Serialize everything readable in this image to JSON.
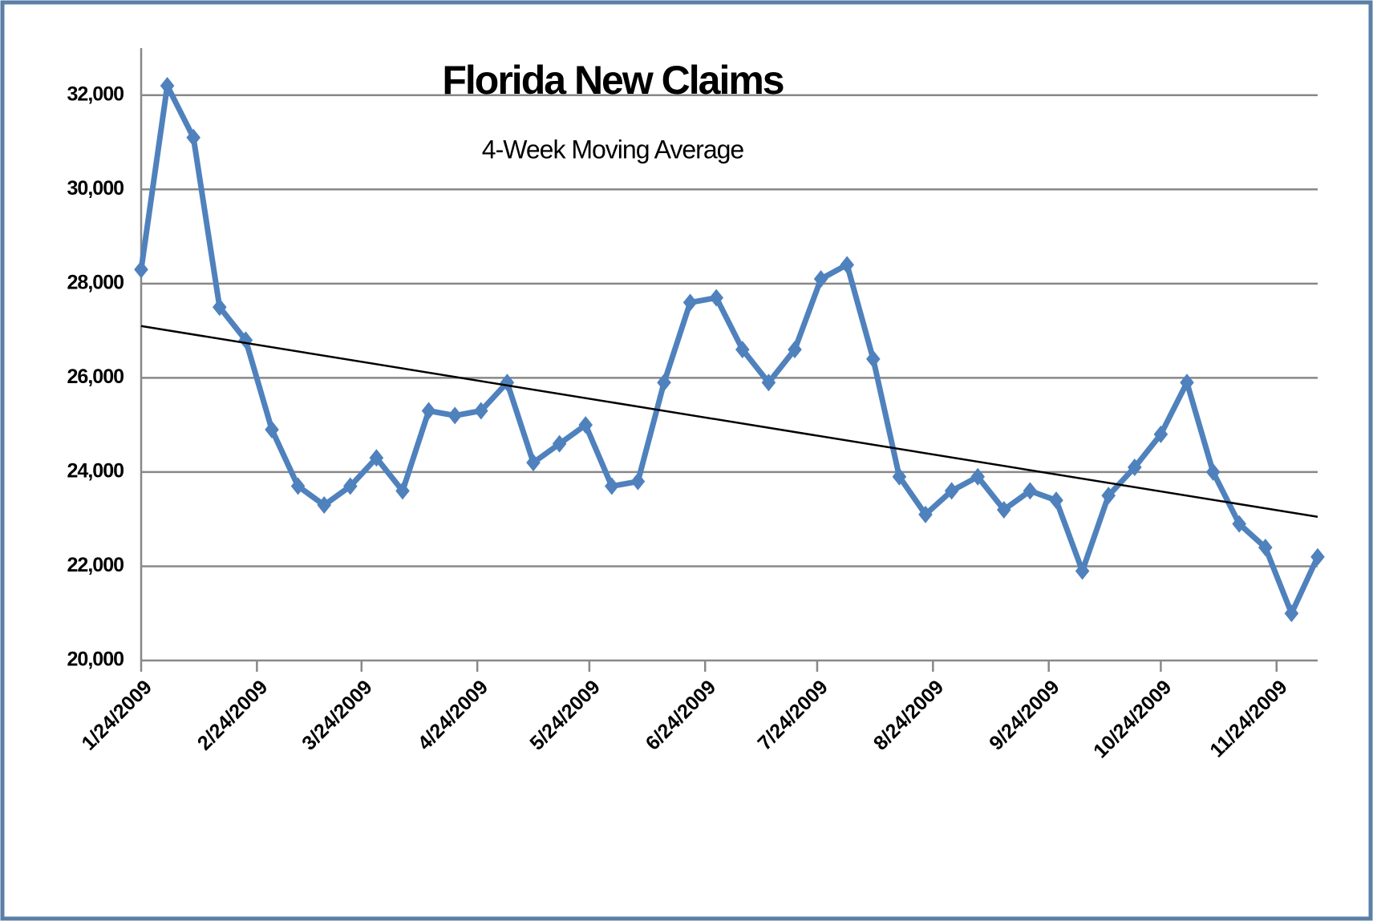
{
  "chart_data": {
    "type": "line",
    "title": "Florida New Claims",
    "subtitle": "4-Week Moving Average",
    "x": [
      "1/24/2009",
      "1/31/2009",
      "2/7/2009",
      "2/14/2009",
      "2/21/2009",
      "2/28/2009",
      "3/7/2009",
      "3/14/2009",
      "3/21/2009",
      "3/28/2009",
      "4/4/2009",
      "4/11/2009",
      "4/18/2009",
      "4/25/2009",
      "5/2/2009",
      "5/9/2009",
      "5/16/2009",
      "5/23/2009",
      "5/30/2009",
      "6/6/2009",
      "6/13/2009",
      "6/20/2009",
      "6/27/2009",
      "7/4/2009",
      "7/11/2009",
      "7/18/2009",
      "7/25/2009",
      "8/1/2009",
      "8/8/2009",
      "8/15/2009",
      "8/22/2009",
      "8/29/2009",
      "9/5/2009",
      "9/12/2009",
      "9/19/2009",
      "9/26/2009",
      "10/3/2009",
      "10/10/2009",
      "10/17/2009",
      "10/24/2009",
      "10/31/2009",
      "11/7/2009",
      "11/14/2009",
      "11/21/2009",
      "11/28/2009",
      "12/5/2009"
    ],
    "series": [
      {
        "color": "#4f81bd",
        "values": [
          28300,
          32200,
          31100,
          27500,
          26800,
          24900,
          23700,
          23300,
          23700,
          24300,
          23600,
          25300,
          25200,
          25300,
          25900,
          24200,
          24600,
          25000,
          23700,
          23800,
          25900,
          27600,
          27700,
          26600,
          25900,
          26600,
          28100,
          28400,
          26400,
          23900,
          23100,
          23600,
          23900,
          23200,
          23600,
          23400,
          21900,
          23500,
          24100,
          24800,
          25900,
          24000,
          22900,
          22400,
          21000,
          22200
        ]
      }
    ],
    "trend": {
      "color": "#000000",
      "values": [
        27100,
        23050
      ]
    },
    "xlim": [
      "1/24/2009",
      "12/5/2009"
    ],
    "xticks": [
      "1/24/2009",
      "2/24/2009",
      "3/24/2009",
      "4/24/2009",
      "5/24/2009",
      "6/24/2009",
      "7/24/2009",
      "8/24/2009",
      "9/24/2009",
      "10/24/2009",
      "11/24/2009"
    ],
    "ylim": [
      20000,
      33000
    ],
    "yticks": [
      {
        "value": 20000,
        "label": "20,000"
      },
      {
        "value": 22000,
        "label": "22,000"
      },
      {
        "value": 24000,
        "label": "24,000"
      },
      {
        "value": 26000,
        "label": "26,000"
      },
      {
        "value": 28000,
        "label": "28,000"
      },
      {
        "value": 30000,
        "label": "30,000"
      },
      {
        "value": 32000,
        "label": "32,000"
      }
    ],
    "grid": true
  }
}
